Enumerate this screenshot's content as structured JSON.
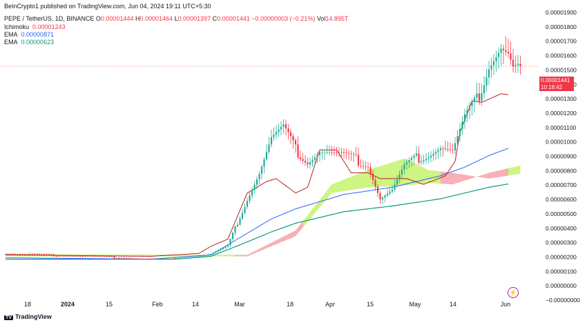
{
  "publisher": "BeInCrypto1 published on TradingView.com, Jun 04, 2024 19:11 UTC+5:30",
  "symbol": "PEPE / TetherUS, 1D, BINANCE",
  "ohlc": {
    "o_label": "O",
    "o": "0.00001444",
    "h_label": "H",
    "h": "0.00001464",
    "l_label": "L",
    "l": "0.00001397",
    "c_label": "C",
    "c": "0.00001441",
    "change": "−0.00000003 (−0.21%)",
    "vol_label": "Vol",
    "vol": "14.895T"
  },
  "indicators": [
    {
      "name": "Ichimoku",
      "value": "0.00001243"
    },
    {
      "name": "EMA",
      "value": "0.00000871"
    },
    {
      "name": "EMA",
      "value": "0.00000623"
    }
  ],
  "price_tag": {
    "price": "0.00001441",
    "countdown": "10:18:42"
  },
  "footer_logo": "TradingView",
  "colors": {
    "up": "#22ab94",
    "down": "#f23645",
    "ema_fast": "#2962ff",
    "ema_slow": "#089981",
    "kijun": "#b71c1c",
    "cloud_bull": "#c6f26f",
    "cloud_bear": "#f7a1a8"
  },
  "chart_data": {
    "type": "candlestick",
    "ylim": [
      0,
      1.9e-05
    ],
    "yticks": [
      "0.00001900",
      "0.00001800",
      "0.00001700",
      "0.00001600",
      "0.00001500",
      "0.00001400",
      "0.00001300",
      "0.00001200",
      "0.00001100",
      "0.00001000",
      "0.00000900",
      "0.00000800",
      "0.00000700",
      "0.00000600",
      "0.00000500",
      "0.00000400",
      "0.00000300",
      "0.00000200",
      "0.00000100",
      "0.00000000",
      "−0.00000000"
    ],
    "xticks": [
      "18",
      "2024",
      "15",
      "Feb",
      "14",
      "Mar",
      "18",
      "Apr",
      "15",
      "May",
      "14",
      "Jun"
    ],
    "price_line": 1.441e-05,
    "note": "prices in units of 1e-8 USDT; anchors give approximate daily closes",
    "close_anchors": [
      [
        0,
        140
      ],
      [
        40,
        118
      ],
      [
        60,
        100
      ],
      [
        80,
        120
      ],
      [
        85,
        135
      ],
      [
        92,
        190
      ],
      [
        100,
        520
      ],
      [
        105,
        700
      ],
      [
        110,
        940
      ],
      [
        115,
        1010
      ],
      [
        120,
        860
      ],
      [
        125,
        780
      ],
      [
        130,
        850
      ],
      [
        140,
        820
      ],
      [
        145,
        790
      ],
      [
        150,
        760
      ],
      [
        155,
        520
      ],
      [
        160,
        580
      ],
      [
        165,
        740
      ],
      [
        170,
        800
      ],
      [
        175,
        830
      ],
      [
        180,
        880
      ],
      [
        185,
        850
      ],
      [
        190,
        1080
      ],
      [
        195,
        1200
      ],
      [
        200,
        1460
      ],
      [
        205,
        1580
      ],
      [
        208,
        1530
      ],
      [
        210,
        1430
      ],
      [
        213,
        1441
      ]
    ],
    "kijun_anchors": [
      [
        0,
        130
      ],
      [
        60,
        120
      ],
      [
        80,
        140
      ],
      [
        85,
        190
      ],
      [
        92,
        240
      ],
      [
        100,
        560
      ],
      [
        108,
        640
      ],
      [
        112,
        660
      ],
      [
        120,
        560
      ],
      [
        125,
        600
      ],
      [
        130,
        860
      ],
      [
        137,
        860
      ],
      [
        143,
        700
      ],
      [
        150,
        700
      ],
      [
        155,
        660
      ],
      [
        166,
        660
      ],
      [
        173,
        620
      ],
      [
        182,
        680
      ],
      [
        186,
        780
      ],
      [
        188,
        980
      ],
      [
        193,
        1200
      ],
      [
        197,
        1190
      ],
      [
        201,
        1220
      ],
      [
        205,
        1250
      ],
      [
        208,
        1243
      ]
    ],
    "ema_fast_anchors": [
      [
        0,
        110
      ],
      [
        60,
        100
      ],
      [
        85,
        130
      ],
      [
        100,
        280
      ],
      [
        110,
        380
      ],
      [
        120,
        450
      ],
      [
        140,
        550
      ],
      [
        160,
        600
      ],
      [
        180,
        680
      ],
      [
        190,
        740
      ],
      [
        200,
        820
      ],
      [
        208,
        871
      ]
    ],
    "ema_slow_anchors": [
      [
        0,
        100
      ],
      [
        70,
        100
      ],
      [
        85,
        120
      ],
      [
        100,
        220
      ],
      [
        110,
        290
      ],
      [
        120,
        350
      ],
      [
        140,
        430
      ],
      [
        160,
        470
      ],
      [
        180,
        520
      ],
      [
        190,
        560
      ],
      [
        200,
        600
      ],
      [
        208,
        623
      ]
    ]
  }
}
